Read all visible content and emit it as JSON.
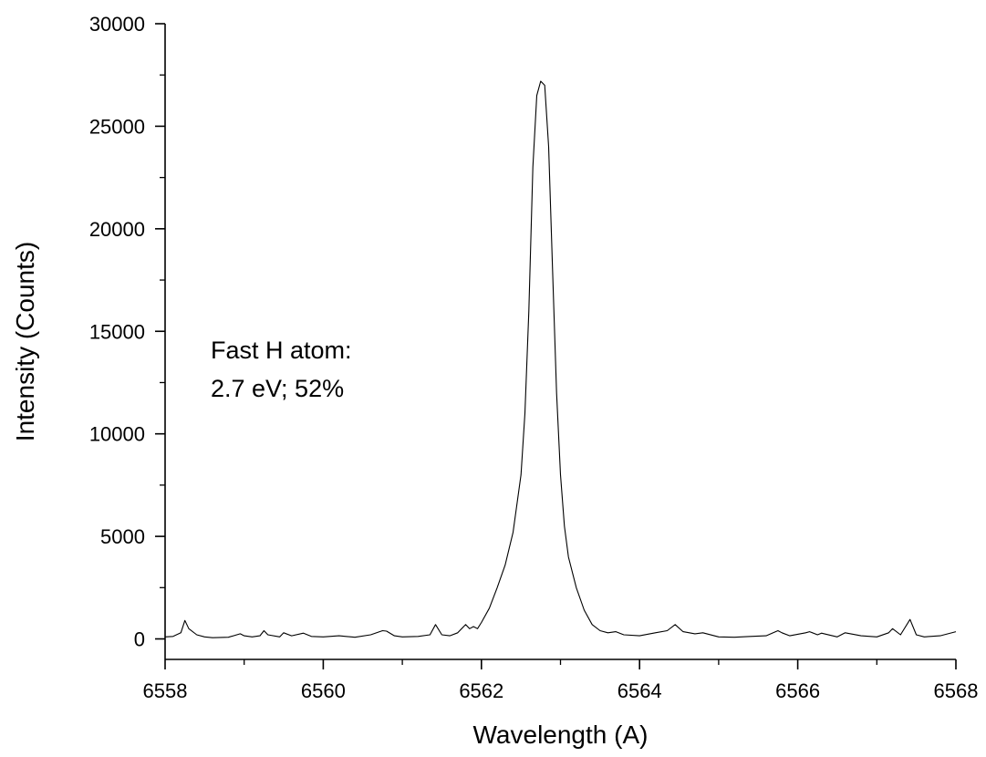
{
  "chart_data": {
    "type": "line",
    "title": "",
    "xlabel": "Wavelength (A)",
    "ylabel": "Intensity (Counts)",
    "xlim": [
      6558,
      6568
    ],
    "ylim": [
      -1000,
      30000
    ],
    "x_ticks": [
      6558,
      6560,
      6562,
      6564,
      6566,
      6568
    ],
    "x_tick_labels": [
      "6558",
      "6560",
      "6562",
      "6564",
      "6566",
      "6568"
    ],
    "y_ticks": [
      0,
      5000,
      10000,
      15000,
      20000,
      25000,
      30000
    ],
    "y_tick_labels": [
      "0",
      "5000",
      "10000",
      "15000",
      "20000",
      "25000",
      "30000"
    ],
    "grid": false,
    "annotations": [
      {
        "line1": "Fast H atom:",
        "line2": "2.7 eV; 52%"
      }
    ],
    "series": [
      {
        "color": "#000000",
        "x": [
          6558.0,
          6558.1,
          6558.2,
          6558.25,
          6558.3,
          6558.4,
          6558.5,
          6558.6,
          6558.8,
          6558.95,
          6559.0,
          6559.1,
          6559.2,
          6559.25,
          6559.3,
          6559.45,
          6559.5,
          6559.6,
          6559.75,
          6559.85,
          6560.0,
          6560.2,
          6560.4,
          6560.6,
          6560.75,
          6560.8,
          6560.9,
          6561.0,
          6561.2,
          6561.35,
          6561.42,
          6561.5,
          6561.6,
          6561.7,
          6561.8,
          6561.85,
          6561.9,
          6561.95,
          6562.0,
          6562.1,
          6562.2,
          6562.3,
          6562.4,
          6562.5,
          6562.55,
          6562.6,
          6562.65,
          6562.7,
          6562.75,
          6562.8,
          6562.85,
          6562.9,
          6562.95,
          6563.0,
          6563.05,
          6563.1,
          6563.2,
          6563.3,
          6563.4,
          6563.5,
          6563.6,
          6563.7,
          6563.8,
          6564.0,
          6564.2,
          6564.35,
          6564.45,
          6564.55,
          6564.7,
          6564.8,
          6565.0,
          6565.2,
          6565.4,
          6565.6,
          6565.75,
          6565.8,
          6565.9,
          6566.1,
          6566.15,
          6566.25,
          6566.3,
          6566.5,
          6566.6,
          6566.8,
          6567.0,
          6567.15,
          6567.2,
          6567.3,
          6567.42,
          6567.5,
          6567.6,
          6567.8,
          6568.0
        ],
        "values": [
          100,
          120,
          300,
          900,
          500,
          200,
          100,
          60,
          80,
          250,
          150,
          100,
          150,
          400,
          200,
          100,
          300,
          150,
          280,
          120,
          100,
          150,
          80,
          200,
          400,
          380,
          150,
          100,
          120,
          200,
          700,
          200,
          150,
          300,
          700,
          500,
          600,
          500,
          800,
          1500,
          2500,
          3600,
          5200,
          8000,
          11000,
          16000,
          23000,
          26500,
          27200,
          27000,
          24000,
          18000,
          12000,
          8000,
          5500,
          4000,
          2500,
          1400,
          700,
          400,
          300,
          350,
          200,
          150,
          300,
          400,
          700,
          350,
          250,
          300,
          100,
          80,
          120,
          150,
          400,
          300,
          150,
          300,
          350,
          200,
          280,
          100,
          300,
          150,
          100,
          300,
          500,
          200,
          950,
          200,
          100,
          150,
          350
        ]
      }
    ]
  }
}
